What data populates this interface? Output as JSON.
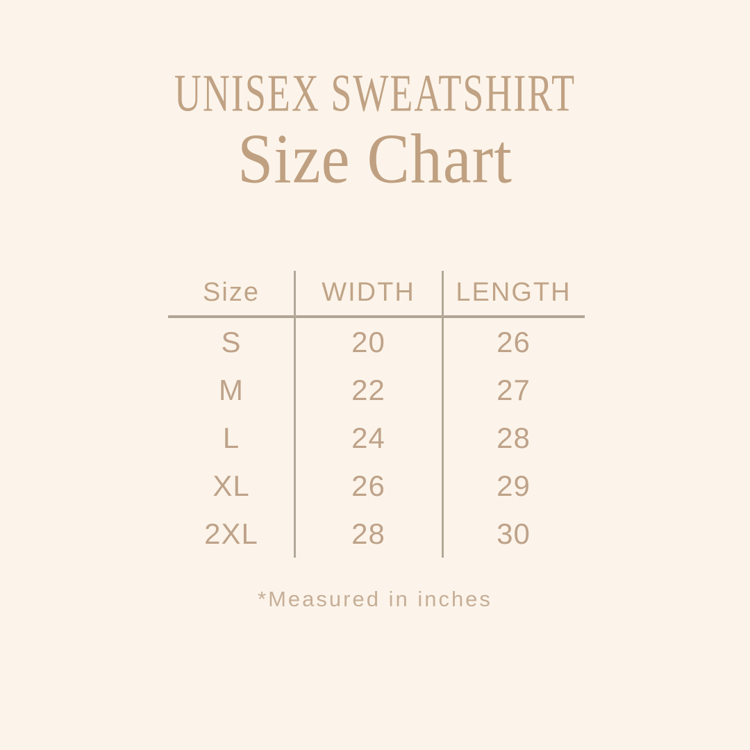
{
  "title": "UNISEX SWEATSHIRT",
  "subtitle": "Size Chart",
  "footnote": "*Measured in inches",
  "colors": {
    "background": "#fcf4ea",
    "heading_text": "#c0a284",
    "table_text": "#bea289",
    "divider_line": "#b0a494"
  },
  "chart_data": {
    "type": "table",
    "title": "UNISEX SWEATSHIRT",
    "subtitle": "Size Chart",
    "columns": [
      "Size",
      "WIDTH",
      "LENGTH"
    ],
    "rows": [
      [
        "S",
        "20",
        "26"
      ],
      [
        "M",
        "22",
        "27"
      ],
      [
        "L",
        "24",
        "28"
      ],
      [
        "XL",
        "26",
        "29"
      ],
      [
        "2XL",
        "28",
        "30"
      ]
    ],
    "footnote": "*Measured in inches",
    "units": "inches",
    "legend_position": "none",
    "grid": "column dividers + header underline only"
  }
}
